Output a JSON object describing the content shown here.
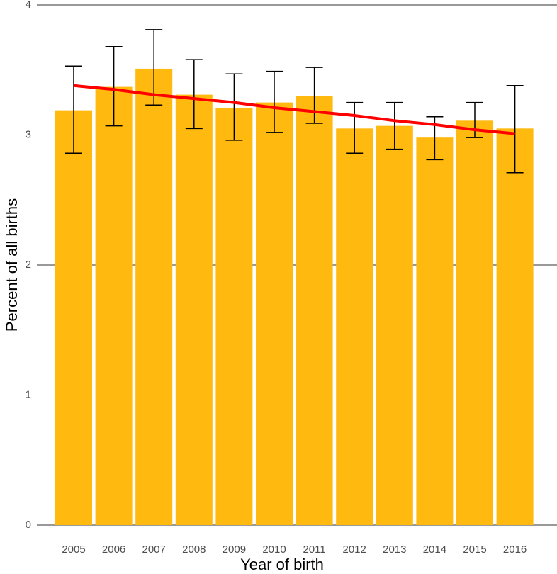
{
  "chart_data": {
    "type": "bar",
    "x_label": "Year of birth",
    "y_label": "Percent of all births",
    "categories": [
      "2005",
      "2006",
      "2007",
      "2008",
      "2009",
      "2010",
      "2011",
      "2012",
      "2013",
      "2014",
      "2015",
      "2016"
    ],
    "values": [
      3.19,
      3.37,
      3.51,
      3.31,
      3.21,
      3.25,
      3.3,
      3.05,
      3.07,
      2.98,
      3.11,
      3.05
    ],
    "lower": [
      2.86,
      3.07,
      3.23,
      3.05,
      2.96,
      3.02,
      3.09,
      2.86,
      2.89,
      2.81,
      2.98,
      2.71
    ],
    "upper": [
      3.53,
      3.68,
      3.81,
      3.58,
      3.47,
      3.49,
      3.52,
      3.25,
      3.25,
      3.14,
      3.25,
      3.38
    ],
    "color": "#ffb90f",
    "trend": {
      "color": "#ff0000",
      "values": [
        3.38,
        3.35,
        3.31,
        3.28,
        3.25,
        3.21,
        3.18,
        3.15,
        3.11,
        3.08,
        3.04,
        3.01
      ]
    },
    "ylim": [
      0,
      4
    ],
    "yticks": [
      0,
      1,
      2,
      3,
      4
    ],
    "grid": true
  }
}
